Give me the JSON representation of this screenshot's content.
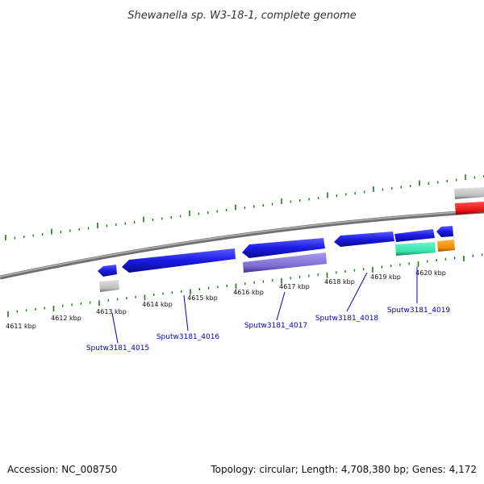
{
  "title": "Shewanella sp. W3-18-1, complete genome",
  "footer": {
    "accession": "Accession: NC_008750",
    "summary": "Topology: circular; Length: 4,708,380 bp; Genes: 4,172"
  },
  "kbp_labels": [
    "4611 kbp",
    "4612 kbp",
    "4613 kbp",
    "4614 kbp",
    "4615 kbp",
    "4616 kbp",
    "4617 kbp",
    "4618 kbp",
    "4619 kbp",
    "4620 kbp"
  ],
  "gene_labels": [
    "Sputw3181_4015",
    "Sputw3181_4016",
    "Sputw3181_4017",
    "Sputw3181_4018",
    "Sputw3181_4019"
  ],
  "colors": {
    "backbone": "#7a7a7a",
    "ticks": "#1e7a1e",
    "cds": "#1a1ae6",
    "gene_label": "#0000c0",
    "rna_gray": "#bdbdbd",
    "purple": "#7a6ad0",
    "green": "#33e0a8",
    "orange": "#f08c00",
    "red": "#e61010"
  }
}
